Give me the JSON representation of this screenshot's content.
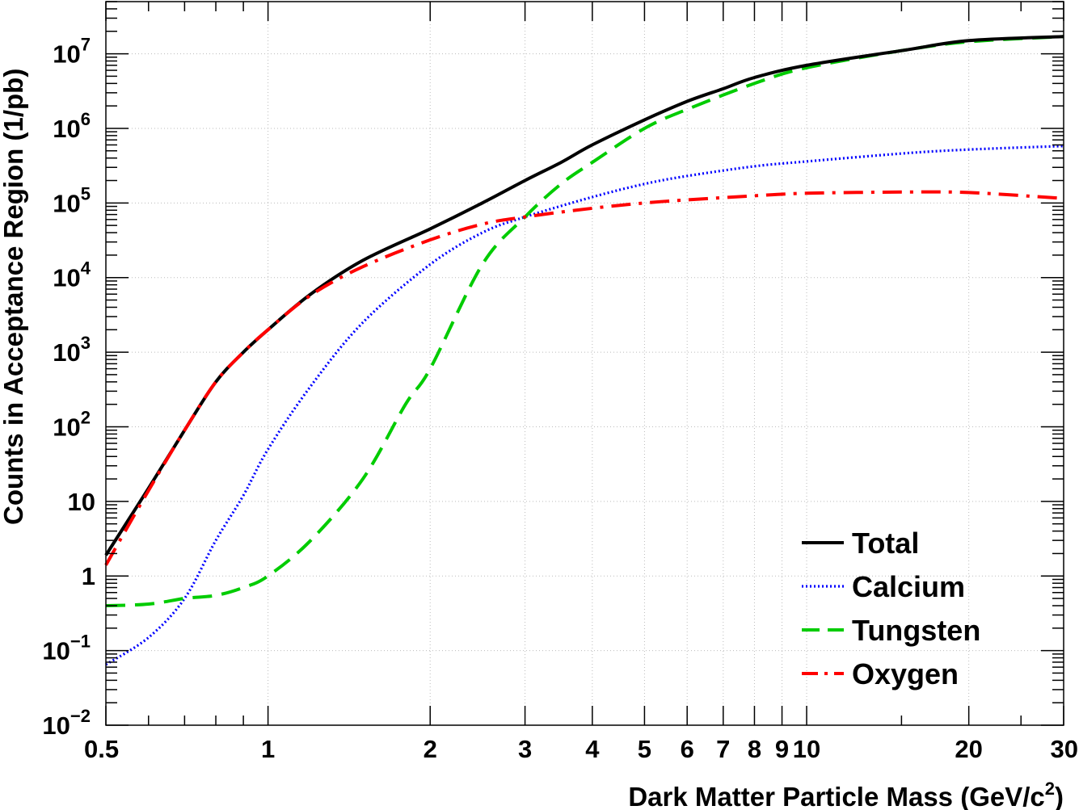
{
  "chart_data": {
    "type": "line",
    "title": "",
    "xlabel": "Dark Matter Particle Mass (GeV/c",
    "xlabel_sup": "2",
    "xlabel_end": ")",
    "ylabel": "Counts in Acceptance Region (1/pb)",
    "xscale": "log",
    "yscale": "log",
    "xlim": [
      0.5,
      30
    ],
    "ylim": [
      0.01,
      50000000
    ],
    "grid": true,
    "legend_position": "bottom-right",
    "x_ticks": [
      {
        "value": 0.5,
        "label": "0.5"
      },
      {
        "value": 1,
        "label": "1"
      },
      {
        "value": 2,
        "label": "2"
      },
      {
        "value": 3,
        "label": "3"
      },
      {
        "value": 4,
        "label": "4"
      },
      {
        "value": 5,
        "label": "5"
      },
      {
        "value": 6,
        "label": "6"
      },
      {
        "value": 7,
        "label": "7"
      },
      {
        "value": 8,
        "label": "8"
      },
      {
        "value": 9,
        "label": "9"
      },
      {
        "value": 10,
        "label": "10"
      },
      {
        "value": 20,
        "label": "20"
      },
      {
        "value": 30,
        "label": "30"
      }
    ],
    "y_ticks": [
      {
        "value": 0.01,
        "base": "10",
        "exp": "−2"
      },
      {
        "value": 0.1,
        "base": "10",
        "exp": "−1"
      },
      {
        "value": 1,
        "base": "1",
        "exp": ""
      },
      {
        "value": 10,
        "base": "10",
        "exp": ""
      },
      {
        "value": 100,
        "base": "10",
        "exp": "2"
      },
      {
        "value": 1000,
        "base": "10",
        "exp": "3"
      },
      {
        "value": 10000,
        "base": "10",
        "exp": "4"
      },
      {
        "value": 100000,
        "base": "10",
        "exp": "5"
      },
      {
        "value": 1000000,
        "base": "10",
        "exp": "6"
      },
      {
        "value": 10000000,
        "base": "10",
        "exp": "7"
      }
    ],
    "series": [
      {
        "name": "Total",
        "color": "#000000",
        "style": "solid",
        "x": [
          0.5,
          0.6,
          0.7,
          0.8,
          0.9,
          1.0,
          1.2,
          1.5,
          2.0,
          2.5,
          3.0,
          3.5,
          4.0,
          5.0,
          6.0,
          7.0,
          8.0,
          10.0,
          15.0,
          20.0,
          30.0
        ],
        "y": [
          1.9,
          15,
          90,
          400,
          1000,
          2000,
          6000,
          17000,
          45000,
          100000,
          200000,
          350000,
          600000,
          1300000,
          2300000,
          3400000,
          4800000,
          7000000,
          11000000,
          15000000,
          17000000
        ]
      },
      {
        "name": "Calcium",
        "color": "#0000ff",
        "style": "dotted",
        "x": [
          0.5,
          0.6,
          0.7,
          0.8,
          0.9,
          1.0,
          1.2,
          1.5,
          2.0,
          2.5,
          3.0,
          4.0,
          5.0,
          6.0,
          8.0,
          10.0,
          15.0,
          20.0,
          30.0
        ],
        "y": [
          0.065,
          0.15,
          0.5,
          3,
          12,
          50,
          350,
          2500,
          15000,
          40000,
          65000,
          120000,
          180000,
          230000,
          310000,
          360000,
          460000,
          520000,
          580000
        ]
      },
      {
        "name": "Tungsten",
        "color": "#00cc00",
        "style": "dashed",
        "x": [
          0.5,
          0.6,
          0.7,
          0.8,
          0.9,
          1.0,
          1.2,
          1.5,
          1.8,
          2.0,
          2.5,
          3.0,
          3.5,
          4.0,
          5.0,
          6.0,
          8.0,
          10.0,
          15.0,
          20.0,
          30.0
        ],
        "y": [
          0.4,
          0.42,
          0.5,
          0.55,
          0.7,
          1.0,
          3,
          20,
          200,
          600,
          15000,
          65000,
          180000,
          350000,
          1000000,
          1800000,
          4000000,
          6500000,
          11000000,
          14500000,
          17000000
        ]
      },
      {
        "name": "Oxygen",
        "color": "#ff0000",
        "style": "dashdot",
        "x": [
          0.5,
          0.6,
          0.7,
          0.8,
          0.9,
          1.0,
          1.2,
          1.5,
          2.0,
          2.5,
          3.0,
          4.0,
          5.0,
          6.0,
          8.0,
          10.0,
          15.0,
          20.0,
          30.0
        ],
        "y": [
          1.4,
          14,
          90,
          400,
          1000,
          2000,
          5800,
          14000,
          32000,
          52000,
          65000,
          85000,
          100000,
          110000,
          125000,
          135000,
          140000,
          138000,
          115000
        ]
      }
    ],
    "legend": [
      "Total",
      "Calcium",
      "Tungsten",
      "Oxygen"
    ]
  }
}
